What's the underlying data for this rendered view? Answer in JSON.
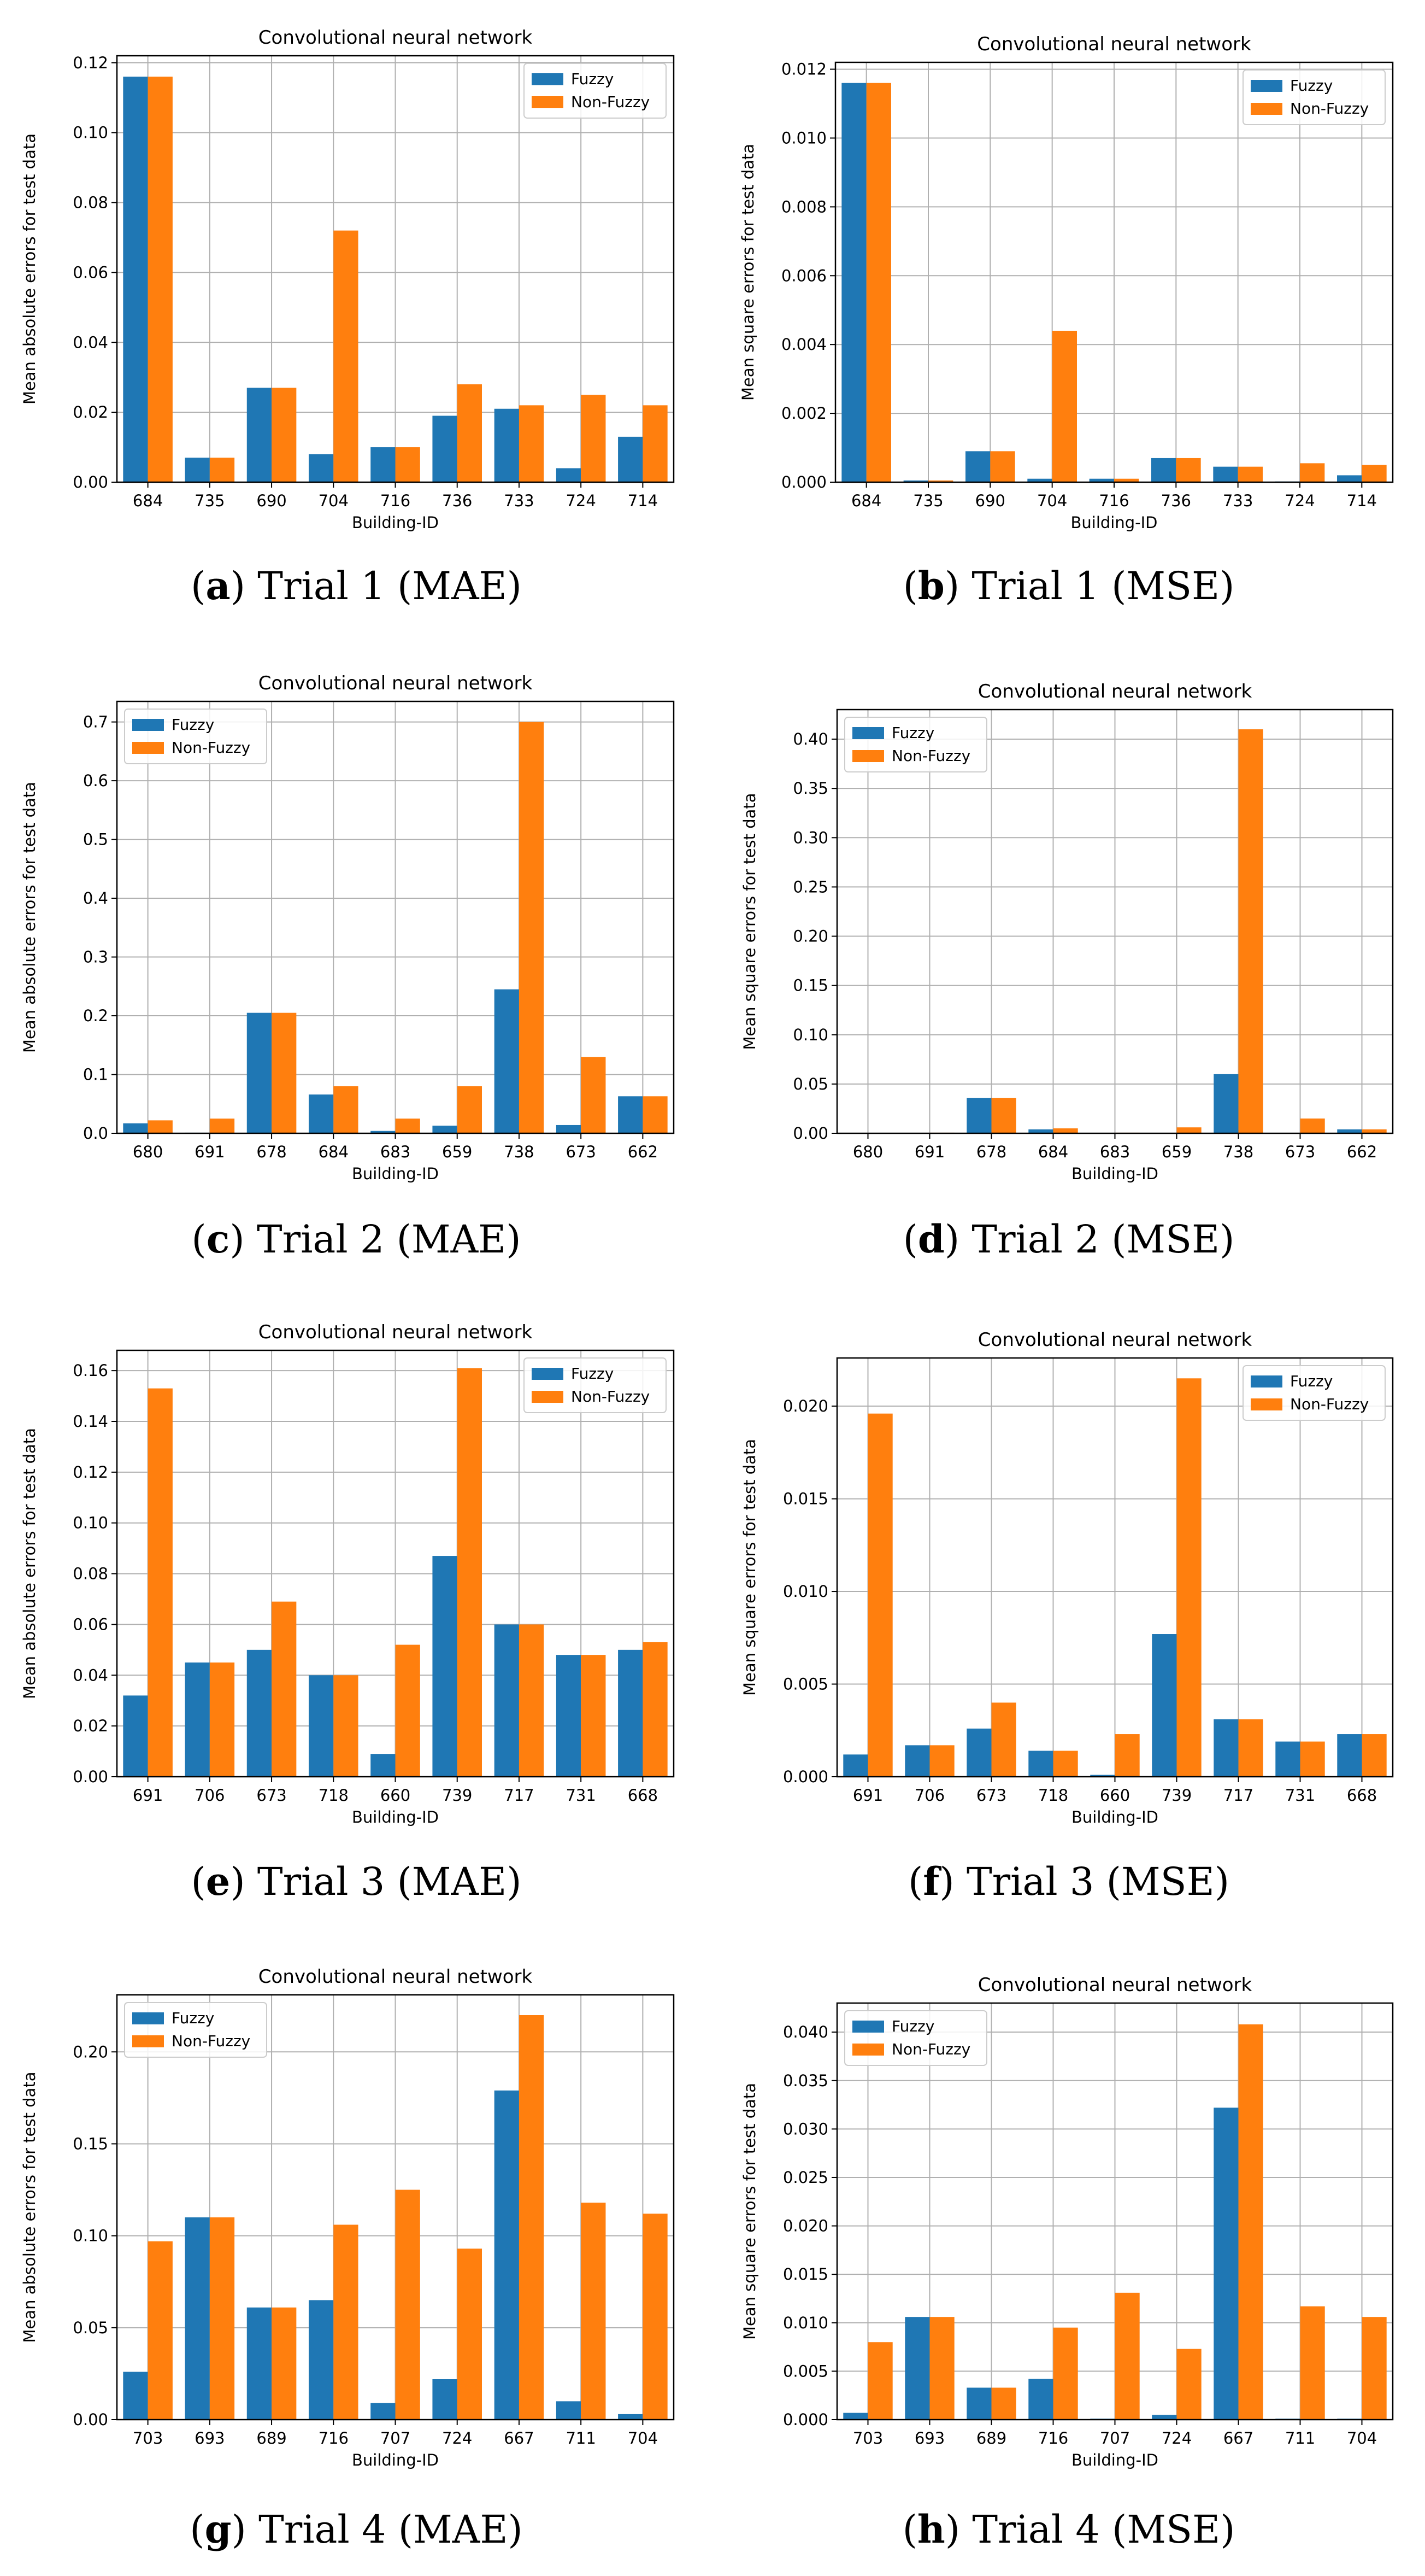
{
  "colors": {
    "fuzzy": "#1f77b4",
    "nonfuzzy": "#ff7f0e",
    "grid": "#b0b0b0",
    "axis": "#000000"
  },
  "chart_data": [
    {
      "id": "a",
      "type": "bar",
      "title": "Convolutional neural network",
      "xlabel": "Building-ID",
      "ylabel": "Mean absolute errors for test data",
      "categories": [
        "684",
        "735",
        "690",
        "704",
        "716",
        "736",
        "733",
        "724",
        "714"
      ],
      "series": [
        {
          "name": "Fuzzy",
          "values": [
            0.116,
            0.007,
            0.027,
            0.008,
            0.01,
            0.019,
            0.021,
            0.004,
            0.013
          ]
        },
        {
          "name": "Non-Fuzzy",
          "values": [
            0.116,
            0.007,
            0.027,
            0.072,
            0.01,
            0.028,
            0.022,
            0.025,
            0.022
          ]
        }
      ],
      "ylim": [
        0,
        0.122
      ],
      "yticks": [
        0.0,
        0.02,
        0.04,
        0.06,
        0.08,
        0.1,
        0.12
      ],
      "yticklabels": [
        "0.00",
        "0.02",
        "0.04",
        "0.06",
        "0.08",
        "0.10",
        "0.12"
      ],
      "legend": "top-right"
    },
    {
      "id": "b",
      "type": "bar",
      "title": "Convolutional neural network",
      "xlabel": "Building-ID",
      "ylabel": "Mean square errors for test data",
      "categories": [
        "684",
        "735",
        "690",
        "704",
        "716",
        "736",
        "733",
        "724",
        "714"
      ],
      "series": [
        {
          "name": "Fuzzy",
          "values": [
            0.0116,
            5e-05,
            0.0009,
            0.0001,
            0.0001,
            0.0007,
            0.00045,
            2e-05,
            0.0002
          ]
        },
        {
          "name": "Non-Fuzzy",
          "values": [
            0.0116,
            5e-05,
            0.0009,
            0.0044,
            0.0001,
            0.0007,
            0.00045,
            0.00055,
            0.0005
          ]
        }
      ],
      "ylim": [
        0,
        0.0122
      ],
      "yticks": [
        0.0,
        0.002,
        0.004,
        0.006,
        0.008,
        0.01,
        0.012
      ],
      "yticklabels": [
        "0.000",
        "0.002",
        "0.004",
        "0.006",
        "0.008",
        "0.010",
        "0.012"
      ],
      "legend": "top-right"
    },
    {
      "id": "c",
      "type": "bar",
      "title": "Convolutional neural network",
      "xlabel": "Building-ID",
      "ylabel": "Mean absolute errors for test data",
      "categories": [
        "680",
        "691",
        "678",
        "684",
        "683",
        "659",
        "738",
        "673",
        "662"
      ],
      "series": [
        {
          "name": "Fuzzy",
          "values": [
            0.017,
            0.001,
            0.205,
            0.066,
            0.004,
            0.013,
            0.245,
            0.014,
            0.063
          ]
        },
        {
          "name": "Non-Fuzzy",
          "values": [
            0.022,
            0.025,
            0.205,
            0.08,
            0.025,
            0.08,
            0.7,
            0.13,
            0.063
          ]
        }
      ],
      "ylim": [
        0,
        0.735
      ],
      "yticks": [
        0.0,
        0.1,
        0.2,
        0.3,
        0.4,
        0.5,
        0.6,
        0.7
      ],
      "yticklabels": [
        "0.0",
        "0.1",
        "0.2",
        "0.3",
        "0.4",
        "0.5",
        "0.6",
        "0.7"
      ],
      "legend": "top-left"
    },
    {
      "id": "d",
      "type": "bar",
      "title": "Convolutional neural network",
      "xlabel": "Building-ID",
      "ylabel": "Mean square errors for test data",
      "categories": [
        "680",
        "691",
        "678",
        "684",
        "683",
        "659",
        "738",
        "673",
        "662"
      ],
      "series": [
        {
          "name": "Fuzzy",
          "values": [
            0.0003,
            0.0,
            0.036,
            0.004,
            0.0,
            0.0002,
            0.06,
            0.0002,
            0.004
          ]
        },
        {
          "name": "Non-Fuzzy",
          "values": [
            0.0005,
            0.0006,
            0.036,
            0.005,
            0.0006,
            0.006,
            0.41,
            0.015,
            0.004
          ]
        }
      ],
      "ylim": [
        0,
        0.43
      ],
      "yticks": [
        0.0,
        0.05,
        0.1,
        0.15,
        0.2,
        0.25,
        0.3,
        0.35,
        0.4
      ],
      "yticklabels": [
        "0.00",
        "0.05",
        "0.10",
        "0.15",
        "0.20",
        "0.25",
        "0.30",
        "0.35",
        "0.40"
      ],
      "legend": "top-left"
    },
    {
      "id": "e",
      "type": "bar",
      "title": "Convolutional neural network",
      "xlabel": "Building-ID",
      "ylabel": "Mean absolute errors for test data",
      "categories": [
        "691",
        "706",
        "673",
        "718",
        "660",
        "739",
        "717",
        "731",
        "668"
      ],
      "series": [
        {
          "name": "Fuzzy",
          "values": [
            0.032,
            0.045,
            0.05,
            0.04,
            0.009,
            0.087,
            0.06,
            0.048,
            0.05
          ]
        },
        {
          "name": "Non-Fuzzy",
          "values": [
            0.153,
            0.045,
            0.069,
            0.04,
            0.052,
            0.161,
            0.06,
            0.048,
            0.053
          ]
        }
      ],
      "ylim": [
        0,
        0.168
      ],
      "yticks": [
        0.0,
        0.02,
        0.04,
        0.06,
        0.08,
        0.1,
        0.12,
        0.14,
        0.16
      ],
      "yticklabels": [
        "0.00",
        "0.02",
        "0.04",
        "0.06",
        "0.08",
        "0.10",
        "0.12",
        "0.14",
        "0.16"
      ],
      "legend": "top-right"
    },
    {
      "id": "f",
      "type": "bar",
      "title": "Convolutional neural network",
      "xlabel": "Building-ID",
      "ylabel": "Mean square errors for test data",
      "categories": [
        "691",
        "706",
        "673",
        "718",
        "660",
        "739",
        "717",
        "731",
        "668"
      ],
      "series": [
        {
          "name": "Fuzzy",
          "values": [
            0.0012,
            0.0017,
            0.0026,
            0.0014,
            0.0001,
            0.0077,
            0.0031,
            0.0019,
            0.0023
          ]
        },
        {
          "name": "Non-Fuzzy",
          "values": [
            0.0196,
            0.0017,
            0.004,
            0.0014,
            0.0023,
            0.0215,
            0.0031,
            0.0019,
            0.0023
          ]
        }
      ],
      "ylim": [
        0,
        0.0226
      ],
      "yticks": [
        0.0,
        0.005,
        0.01,
        0.015,
        0.02
      ],
      "yticklabels": [
        "0.000",
        "0.005",
        "0.010",
        "0.015",
        "0.020"
      ],
      "legend": "top-right"
    },
    {
      "id": "g",
      "type": "bar",
      "title": "Convolutional neural network",
      "xlabel": "Building-ID",
      "ylabel": "Mean absolute errors for test data",
      "categories": [
        "703",
        "693",
        "689",
        "716",
        "707",
        "724",
        "667",
        "711",
        "704"
      ],
      "series": [
        {
          "name": "Fuzzy",
          "values": [
            0.026,
            0.11,
            0.061,
            0.065,
            0.009,
            0.022,
            0.179,
            0.01,
            0.003
          ]
        },
        {
          "name": "Non-Fuzzy",
          "values": [
            0.097,
            0.11,
            0.061,
            0.106,
            0.125,
            0.093,
            0.22,
            0.118,
            0.112
          ]
        }
      ],
      "ylim": [
        0,
        0.231
      ],
      "yticks": [
        0.0,
        0.05,
        0.1,
        0.15,
        0.2
      ],
      "yticklabels": [
        "0.00",
        "0.05",
        "0.10",
        "0.15",
        "0.20"
      ],
      "legend": "top-left"
    },
    {
      "id": "h",
      "type": "bar",
      "title": "Convolutional neural network",
      "xlabel": "Building-ID",
      "ylabel": "Mean square errors for test data",
      "categories": [
        "703",
        "693",
        "689",
        "716",
        "707",
        "724",
        "667",
        "711",
        "704"
      ],
      "series": [
        {
          "name": "Fuzzy",
          "values": [
            0.0007,
            0.0106,
            0.0033,
            0.0042,
            0.0001,
            0.0005,
            0.0322,
            0.0001,
            0.0001
          ]
        },
        {
          "name": "Non-Fuzzy",
          "values": [
            0.008,
            0.0106,
            0.0033,
            0.0095,
            0.0131,
            0.0073,
            0.0408,
            0.0117,
            0.0106
          ]
        }
      ],
      "ylim": [
        0,
        0.043
      ],
      "yticks": [
        0.0,
        0.005,
        0.01,
        0.015,
        0.02,
        0.025,
        0.03,
        0.035,
        0.04
      ],
      "yticklabels": [
        "0.000",
        "0.005",
        "0.010",
        "0.015",
        "0.020",
        "0.025",
        "0.030",
        "0.035",
        "0.040"
      ],
      "legend": "top-left"
    }
  ],
  "captions": [
    {
      "letter": "a",
      "text": "Trial 1 (MAE)"
    },
    {
      "letter": "b",
      "text": "Trial 1 (MSE)"
    },
    {
      "letter": "c",
      "text": "Trial 2 (MAE)"
    },
    {
      "letter": "d",
      "text": "Trial 2 (MSE)"
    },
    {
      "letter": "e",
      "text": "Trial 3 (MAE)"
    },
    {
      "letter": "f",
      "text": "Trial 3 (MSE)"
    },
    {
      "letter": "g",
      "text": "Trial 4 (MAE)"
    },
    {
      "letter": "h",
      "text": "Trial 4 (MSE)"
    }
  ]
}
